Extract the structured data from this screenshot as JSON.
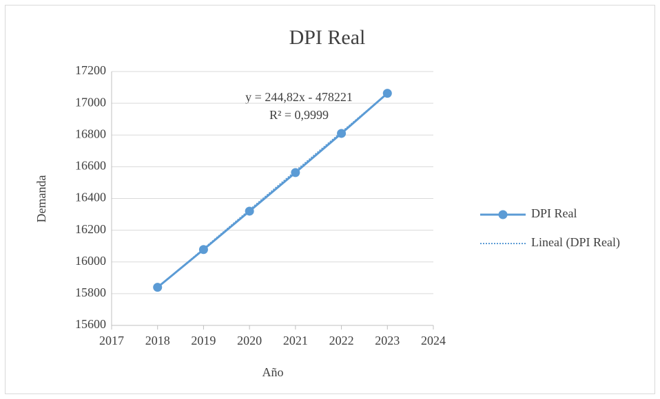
{
  "chart_data": {
    "type": "line",
    "title": "DPI Real",
    "x_label": "Año",
    "y_label": "Demanda",
    "x": [
      2018,
      2019,
      2020,
      2021,
      2022,
      2023
    ],
    "series": [
      {
        "name": "DPI Real",
        "color": "#5b9bd5",
        "values": [
          15840,
          16078,
          16320,
          16563,
          16810,
          17063
        ]
      },
      {
        "name": "Lineal (DPI Real)",
        "color": "#5b9bd5",
        "values": [
          15838,
          16083,
          16328,
          16573,
          16818,
          17062
        ],
        "dash": true
      }
    ],
    "annotations": [
      "y = 244,82x - 478221",
      "R² = 0,9999"
    ],
    "xlim": [
      2017,
      2024
    ],
    "xticks": [
      2017,
      2018,
      2019,
      2020,
      2021,
      2022,
      2023,
      2024
    ],
    "ylim": [
      15600,
      17200
    ],
    "yticks": [
      15600,
      15800,
      16000,
      16200,
      16400,
      16600,
      16800,
      17000,
      17200
    ],
    "grid": true,
    "legend": "right"
  }
}
